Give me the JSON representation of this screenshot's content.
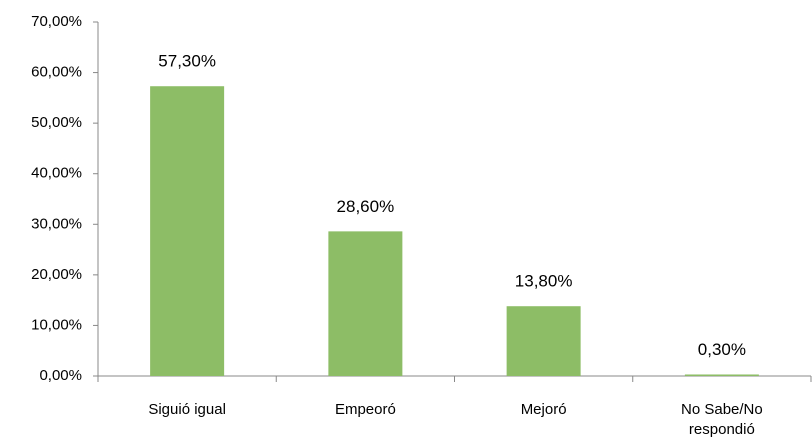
{
  "chart_data": {
    "type": "bar",
    "categories": [
      "Siguió igual",
      "Empeoró",
      "Mejoró",
      "No Sabe/No respondió"
    ],
    "values": [
      57.3,
      28.6,
      13.8,
      0.3
    ],
    "value_labels": [
      "57,30%",
      "28,60%",
      "13,80%",
      "0,30%"
    ],
    "color": "#8dbd66",
    "ylim": [
      0,
      70
    ],
    "yticks": [
      {
        "value": 0,
        "label": "0,00%"
      },
      {
        "value": 10,
        "label": "10,00%"
      },
      {
        "value": 20,
        "label": "20,00%"
      },
      {
        "value": 30,
        "label": "30,00%"
      },
      {
        "value": 40,
        "label": "40,00%"
      },
      {
        "value": 50,
        "label": "50,00%"
      },
      {
        "value": 60,
        "label": "60,00%"
      },
      {
        "value": 70,
        "label": "70,00%"
      }
    ],
    "grid": false
  }
}
